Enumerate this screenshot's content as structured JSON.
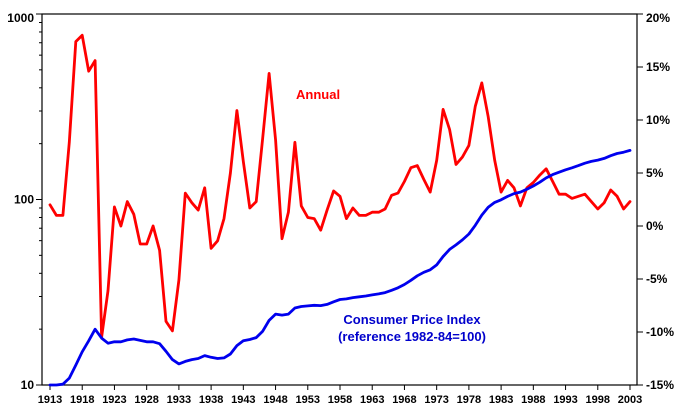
{
  "chart_data": {
    "type": "line",
    "title": "",
    "x_range": [
      1913,
      2003
    ],
    "x_step": 1,
    "x_tick_years": [
      1913,
      1918,
      1923,
      1928,
      1933,
      1938,
      1943,
      1948,
      1953,
      1958,
      1963,
      1968,
      1973,
      1978,
      1983,
      1988,
      1993,
      1998,
      2003
    ],
    "grid": false,
    "legend_position": "none",
    "left_axis": {
      "scale": "log",
      "range": [
        10,
        1000
      ],
      "tick_values": [
        1000,
        100,
        10
      ],
      "tick_labels": [
        "1000",
        "100",
        "10"
      ],
      "color": "#000000"
    },
    "right_axis": {
      "scale": "linear",
      "range": [
        -15,
        20
      ],
      "tick_values": [
        20,
        15,
        10,
        5,
        0,
        -5,
        -10,
        -15
      ],
      "tick_labels": [
        "20%",
        "15%",
        "10%",
        "5%",
        "0%",
        "-5%",
        "-10%",
        "-15%"
      ],
      "color": "#ff0000"
    },
    "series": [
      {
        "name": "Annual",
        "axis": "right",
        "color": "#ff0000",
        "values": [
          2.0,
          1.0,
          1.0,
          7.9,
          17.4,
          18.0,
          14.6,
          15.6,
          -10.5,
          -6.1,
          1.8,
          0.0,
          2.3,
          1.1,
          -1.7,
          -1.7,
          0.0,
          -2.3,
          -9.0,
          -9.9,
          -5.1,
          3.1,
          2.2,
          1.5,
          3.6,
          -2.1,
          -1.4,
          0.7,
          5.0,
          10.9,
          6.1,
          1.7,
          2.3,
          8.3,
          14.4,
          8.1,
          -1.2,
          1.3,
          7.9,
          1.9,
          0.8,
          0.7,
          -0.4,
          1.5,
          3.3,
          2.8,
          0.7,
          1.7,
          1.0,
          1.0,
          1.3,
          1.3,
          1.6,
          2.9,
          3.1,
          4.2,
          5.5,
          5.7,
          4.4,
          3.2,
          6.2,
          11.0,
          9.1,
          5.8,
          6.5,
          7.6,
          11.3,
          13.5,
          10.3,
          6.2,
          3.2,
          4.3,
          3.6,
          1.9,
          3.6,
          4.1,
          4.8,
          5.4,
          4.2,
          3.0,
          3.0,
          2.6,
          2.8,
          3.0,
          2.3,
          1.6,
          2.2,
          3.4,
          2.8,
          1.6,
          2.3
        ]
      },
      {
        "name": "Consumer Price Index",
        "axis": "left",
        "color": "#0000ee",
        "values": [
          9.9,
          10.0,
          10.1,
          10.9,
          12.8,
          15.1,
          17.3,
          20.0,
          17.9,
          16.8,
          17.1,
          17.1,
          17.5,
          17.7,
          17.4,
          17.1,
          17.1,
          16.7,
          15.2,
          13.7,
          13.0,
          13.4,
          13.7,
          13.9,
          14.4,
          14.1,
          13.9,
          14.0,
          14.7,
          16.3,
          17.3,
          17.6,
          18.0,
          19.5,
          22.3,
          24.1,
          23.8,
          24.1,
          26.0,
          26.5,
          26.7,
          26.9,
          26.8,
          27.2,
          28.1,
          28.9,
          29.1,
          29.6,
          29.9,
          30.2,
          30.6,
          31.0,
          31.5,
          32.4,
          33.4,
          34.8,
          36.7,
          38.8,
          40.5,
          41.8,
          44.4,
          49.3,
          53.8,
          56.9,
          60.6,
          65.2,
          72.6,
          82.4,
          90.9,
          96.5,
          99.6,
          103.9,
          107.6,
          109.6,
          113.6,
          118.3,
          124.0,
          130.7,
          136.2,
          140.3,
          144.5,
          148.2,
          152.4,
          156.9,
          160.5,
          163.0,
          166.6,
          172.2,
          177.1,
          179.9,
          184.0
        ]
      }
    ],
    "annotations": [
      {
        "text": "Annual",
        "color": "#ff0000",
        "x": 296,
        "y": 99,
        "anchor": "start"
      },
      {
        "text": "Consumer Price Index",
        "color": "#0000cc",
        "x": 412,
        "y": 324,
        "anchor": "middle"
      },
      {
        "text": "(reference 1982-84=100)",
        "color": "#0000cc",
        "x": 412,
        "y": 341,
        "anchor": "middle"
      }
    ]
  }
}
